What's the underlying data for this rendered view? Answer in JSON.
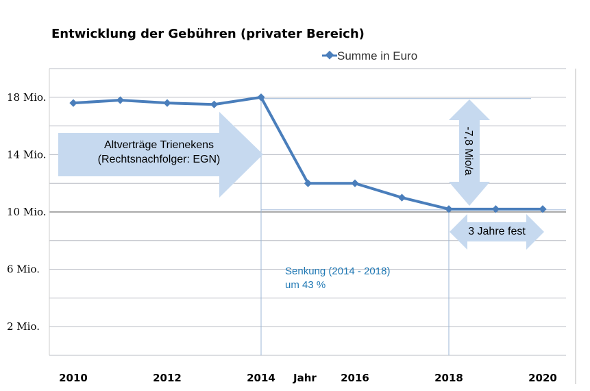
{
  "chart_data": {
    "type": "line",
    "title": "Entwicklung der Gebühren (privater Bereich)",
    "xlabel": "Jahr",
    "ylabel": "",
    "x": [
      2010,
      2011,
      2012,
      2013,
      2014,
      2015,
      2016,
      2017,
      2018,
      2019,
      2020
    ],
    "series": [
      {
        "name": "Summe in Euro",
        "values": [
          17.6,
          17.8,
          17.6,
          17.5,
          18.0,
          12.0,
          12.0,
          11.0,
          10.2,
          10.2,
          10.2
        ],
        "color": "#4a7ebb"
      }
    ],
    "unit": "Mio. Euro",
    "ylim": [
      0,
      20
    ],
    "xlim": [
      2009.5,
      2020.5
    ],
    "y_ticks": [
      {
        "value": 2,
        "label": "2 Mio."
      },
      {
        "value": 6,
        "label": "6 Mio."
      },
      {
        "value": 10,
        "label": "10 Mio."
      },
      {
        "value": 14,
        "label": "14 Mio."
      },
      {
        "value": 18,
        "label": "18 Mio."
      }
    ],
    "x_ticks": [
      "2010",
      "2012",
      "2014",
      "2016",
      "2018",
      "2020"
    ],
    "grid": true,
    "legend": "top",
    "annotations": {
      "old_contracts_line1": "Altverträge Trienekens",
      "old_contracts_line2": "(Rechtsnachfolger: EGN)",
      "reduction_amount": "-7,8 Mio/a",
      "fixed_period": "3 Jahre fest",
      "reduction_line1": "Senkung (2014 - 2018)",
      "reduction_line2": "um 43 %"
    },
    "arrow_color": "#c6d9ef"
  }
}
